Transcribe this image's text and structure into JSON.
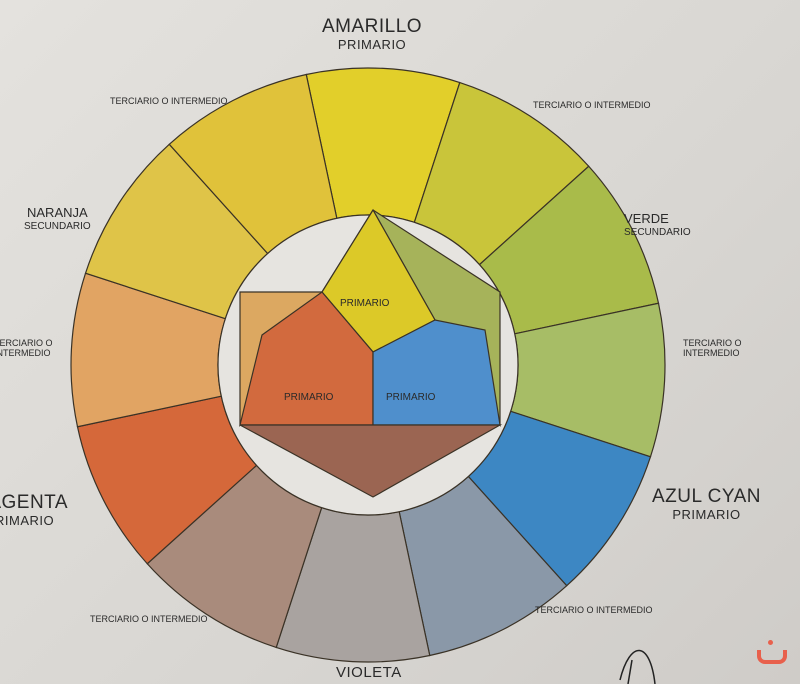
{
  "labels": {
    "amarillo": {
      "name": "AMARILLO",
      "role": "PRIMARIO"
    },
    "verde": {
      "name": "VERDE",
      "role": "SECUNDARIO"
    },
    "azul": {
      "name": "AZUL CYAN",
      "role": "PRIMARIO"
    },
    "violeta": {
      "name": "VIOLETA"
    },
    "magenta": {
      "name": "MAGENTA",
      "role": "PRIMARIO"
    },
    "naranja": {
      "name": "NARANJA",
      "role": "SECUNDARIO"
    },
    "t_top_left": "TERCIARIO O INTERMEDIO",
    "t_top_right": "TERCIARIO O INTERMEDIO",
    "t_right_1": "TERCIARIO O",
    "t_right_2": "INTERMEDIO",
    "t_bottom_right": "TERCIARIO O INTERMEDIO",
    "t_bottom_left": "TERCIARIO O INTERMEDIO",
    "t_left_1": "TERCIARIO O",
    "t_left_2": "INTERMEDIO",
    "inner_primary_yellow": "PRIMARIO",
    "inner_primary_red": "PRIMARIO",
    "inner_primary_blue": "PRIMARIO"
  },
  "wheel_segments": [
    {
      "name": "amarillo",
      "color": "#e2cf2a"
    },
    {
      "name": "terciario-amarillo-verde",
      "color": "#c9c53a"
    },
    {
      "name": "verde",
      "color": "#a9bb4a"
    },
    {
      "name": "terciario-verde-azul",
      "color": "#a7bd66"
    },
    {
      "name": "azul-cyan",
      "color": "#3d87c3"
    },
    {
      "name": "terciario-azul-violeta",
      "color": "#8a98a8"
    },
    {
      "name": "violeta",
      "color": "#a9a3a0"
    },
    {
      "name": "terciario-violeta-magenta",
      "color": "#a98b7c"
    },
    {
      "name": "magenta",
      "color": "#d5683a"
    },
    {
      "name": "terciario-magenta-naranja",
      "color": "#e1a463"
    },
    {
      "name": "naranja",
      "color": "#dfc448"
    },
    {
      "name": "terciario-naranja-amarillo",
      "color": "#e0c23a"
    }
  ],
  "inner_shapes": {
    "yellow": "#dcc928",
    "red": "#d26a3e",
    "blue": "#4f8fcc",
    "brown": "#9b6552",
    "left_panel": "#dca861",
    "right_panel": "#a6b35a"
  }
}
